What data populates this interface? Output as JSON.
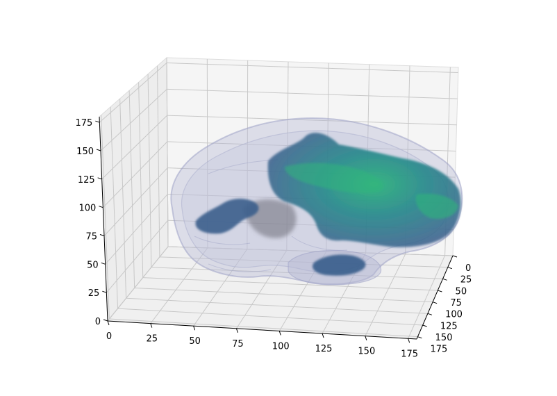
{
  "chart_data": {
    "type": "3d-volume",
    "title": "",
    "xlabel": "",
    "ylabel": "",
    "zlabel": "",
    "x_ticks": [
      0,
      25,
      50,
      75,
      100,
      125,
      150,
      175
    ],
    "y_ticks": [
      0,
      25,
      50,
      75,
      100,
      125,
      150,
      175
    ],
    "z_ticks": [
      0,
      25,
      50,
      75,
      100,
      125,
      150,
      175
    ],
    "xlim": [
      0,
      180
    ],
    "ylim": [
      0,
      180
    ],
    "zlim": [
      0,
      180
    ],
    "grid": true,
    "layers": [
      {
        "name": "brain-outline",
        "style": "translucent",
        "color": "#9ea2c6"
      },
      {
        "name": "lesion-volume",
        "style": "colormap",
        "colors": [
          "#3a5e8c",
          "#2c7e8e",
          "#22a384",
          "#2fb47c"
        ]
      }
    ]
  }
}
